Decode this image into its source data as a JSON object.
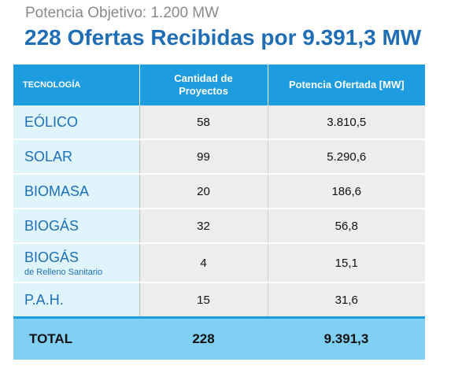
{
  "header": {
    "subtitle": "Potencia Objetivo: 1.200 MW",
    "title": "228 Ofertas Recibidas por 9.391,3 MW"
  },
  "table": {
    "columns": [
      "TECNOLOGÍA",
      "Cantidad de Proyectos",
      "Potencia Ofertada [MW]"
    ],
    "rows": [
      {
        "tech": "EÓLICO",
        "sub": "",
        "count": "58",
        "power": "3.810,5"
      },
      {
        "tech": "SOLAR",
        "sub": "",
        "count": "99",
        "power": "5.290,6"
      },
      {
        "tech": "BIOMASA",
        "sub": "",
        "count": "20",
        "power": "186,6"
      },
      {
        "tech": "BIOGÁS",
        "sub": "",
        "count": "32",
        "power": "56,8"
      },
      {
        "tech": "BIOGÁS",
        "sub": "de Relleno Sanitario",
        "count": "4",
        "power": "15,1"
      },
      {
        "tech": "P.A.H.",
        "sub": "",
        "count": "15",
        "power": "31,6"
      }
    ],
    "total": {
      "label": "TOTAL",
      "count": "228",
      "power": "9.391,3"
    }
  },
  "colors": {
    "title": "#1f6db5",
    "header_bg": "#1e9ce0",
    "name_bg": "#dff4fb",
    "value_bg": "#ededed",
    "total_bg": "#7fd0f3"
  }
}
